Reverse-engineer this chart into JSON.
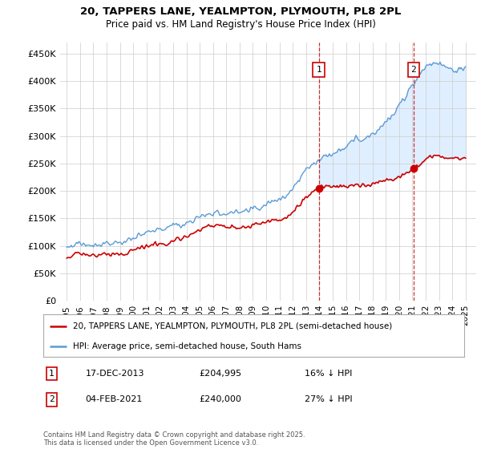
{
  "title_line1": "20, TAPPERS LANE, YEALMPTON, PLYMOUTH, PL8 2PL",
  "title_line2": "Price paid vs. HM Land Registry's House Price Index (HPI)",
  "legend_line1": "20, TAPPERS LANE, YEALMPTON, PLYMOUTH, PL8 2PL (semi-detached house)",
  "legend_line2": "HPI: Average price, semi-detached house, South Hams",
  "annotation1_date": "17-DEC-2013",
  "annotation1_price": "£204,995",
  "annotation1_hpi": "16% ↓ HPI",
  "annotation2_date": "04-FEB-2021",
  "annotation2_price": "£240,000",
  "annotation2_hpi": "27% ↓ HPI",
  "footer": "Contains HM Land Registry data © Crown copyright and database right 2025.\nThis data is licensed under the Open Government Licence v3.0.",
  "price_color": "#cc0000",
  "hpi_color": "#5b9bd5",
  "shade_color": "#ddeeff",
  "marker1_x_year": 2013.96,
  "marker2_x_year": 2021.09,
  "ylim_min": 0,
  "ylim_max": 470000,
  "xlim_min": 1994.5,
  "xlim_max": 2025.8,
  "yticks": [
    0,
    50000,
    100000,
    150000,
    200000,
    250000,
    300000,
    350000,
    400000,
    450000
  ],
  "ytick_labels": [
    "£0",
    "£50K",
    "£100K",
    "£150K",
    "£200K",
    "£250K",
    "£300K",
    "£350K",
    "£400K",
    "£450K"
  ],
  "xticks": [
    1995,
    1996,
    1997,
    1998,
    1999,
    2000,
    2001,
    2002,
    2003,
    2004,
    2005,
    2006,
    2007,
    2008,
    2009,
    2010,
    2011,
    2012,
    2013,
    2014,
    2015,
    2016,
    2017,
    2018,
    2019,
    2020,
    2021,
    2022,
    2023,
    2024,
    2025
  ]
}
